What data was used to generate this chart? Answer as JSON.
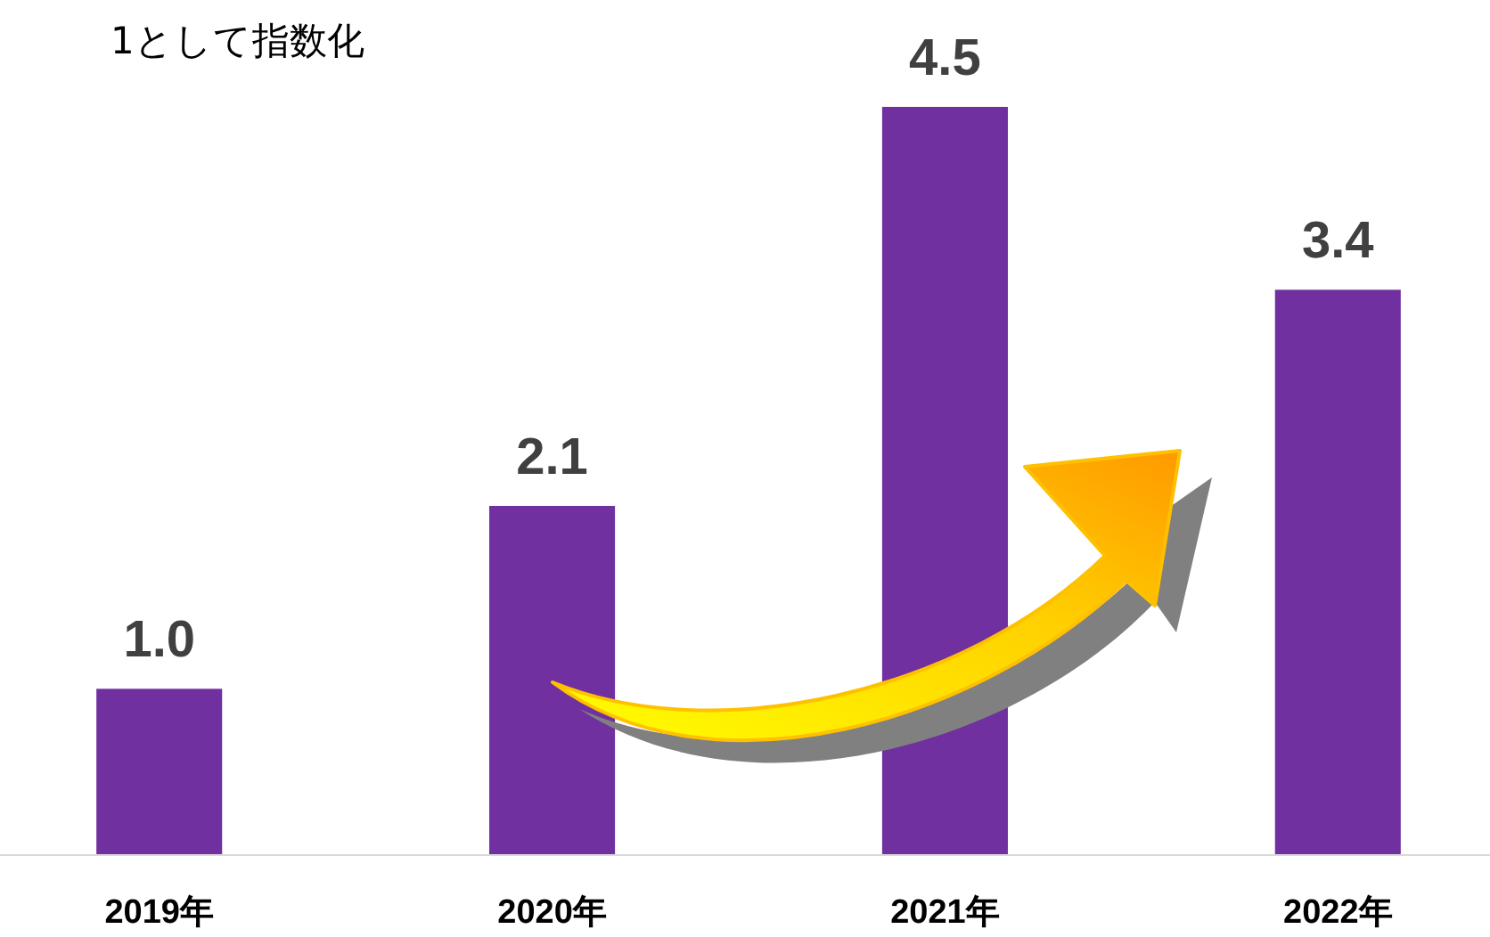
{
  "chart_data": {
    "type": "bar",
    "annotations": [
      "1として指数化"
    ],
    "categories": [
      "2019年",
      "2020年",
      "2021年",
      "2022年"
    ],
    "values": [
      1.0,
      2.1,
      4.5,
      3.4
    ],
    "value_labels": [
      "1.0",
      "2.1",
      "4.5",
      "3.4"
    ],
    "color": "#7030a0"
  }
}
